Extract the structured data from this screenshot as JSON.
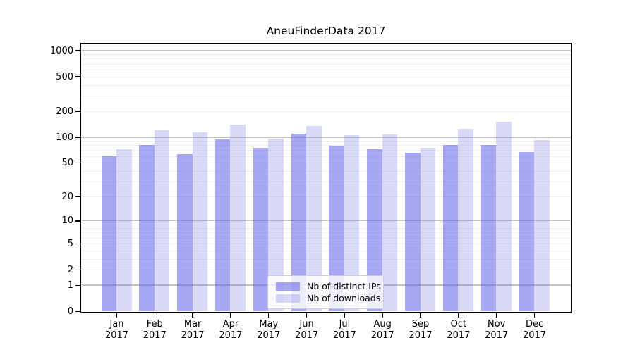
{
  "title": "AneuFinderData 2017",
  "chart_data": {
    "type": "bar",
    "title": "AneuFinderData 2017",
    "scale": "log1p",
    "categories": [
      "Jan",
      "Feb",
      "Mar",
      "Apr",
      "May",
      "Jun",
      "Jul",
      "Aug",
      "Sep",
      "Oct",
      "Nov",
      "Dec"
    ],
    "category_year": "2017",
    "series": [
      {
        "name": "Nb of distinct IPs",
        "values": [
          60,
          81,
          63,
          93,
          75,
          108,
          79,
          72,
          65,
          81,
          81,
          67
        ],
        "fill": "rgba(95,95,231,0.55)",
        "blended_color": "#a7a7f2"
      },
      {
        "name": "Nb of downloads",
        "values": [
          72,
          120,
          112,
          140,
          96,
          133,
          104,
          106,
          74,
          124,
          149,
          92
        ],
        "fill": "rgba(103,103,227,0.25)",
        "blended_color": "#d9d9f8"
      }
    ],
    "yticks": [
      0,
      1,
      2,
      5,
      10,
      20,
      50,
      100,
      200,
      500,
      1000
    ],
    "ylim": [
      0,
      1273
    ],
    "grid": true,
    "legend_position": "bottom-center",
    "colors": {
      "grid_major": "#c3c3c3",
      "grid_minor": "#efefef",
      "axis": "#000000",
      "legend_border": "#cccccc"
    }
  }
}
